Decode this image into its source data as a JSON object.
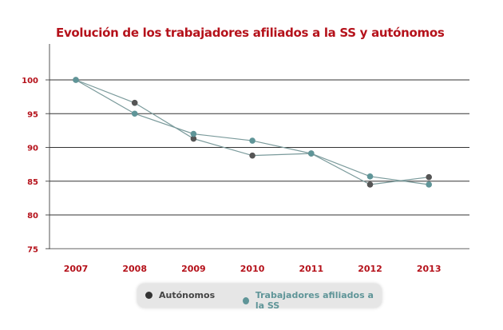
{
  "chart_data": {
    "type": "line",
    "title": "Evolución de los trabajadores afiliados a la SS y autónomos",
    "categories": [
      "2007",
      "2008",
      "2009",
      "2010",
      "2011",
      "2012",
      "2013"
    ],
    "ylim": [
      75,
      105
    ],
    "yticks": [
      75,
      80,
      85,
      90,
      95,
      100
    ],
    "grid": true,
    "legend_position": "bottom",
    "series": [
      {
        "name": "Autónomos",
        "color": "#555555",
        "values": [
          100,
          96.6,
          91.3,
          88.8,
          89.1,
          84.5,
          85.6
        ]
      },
      {
        "name": "Trabajadores afiliados a la SS",
        "color": "#5f9598",
        "values": [
          100,
          95.0,
          92.0,
          91.0,
          89.1,
          85.7,
          84.5
        ]
      }
    ],
    "axis_color": "#b5121b"
  }
}
